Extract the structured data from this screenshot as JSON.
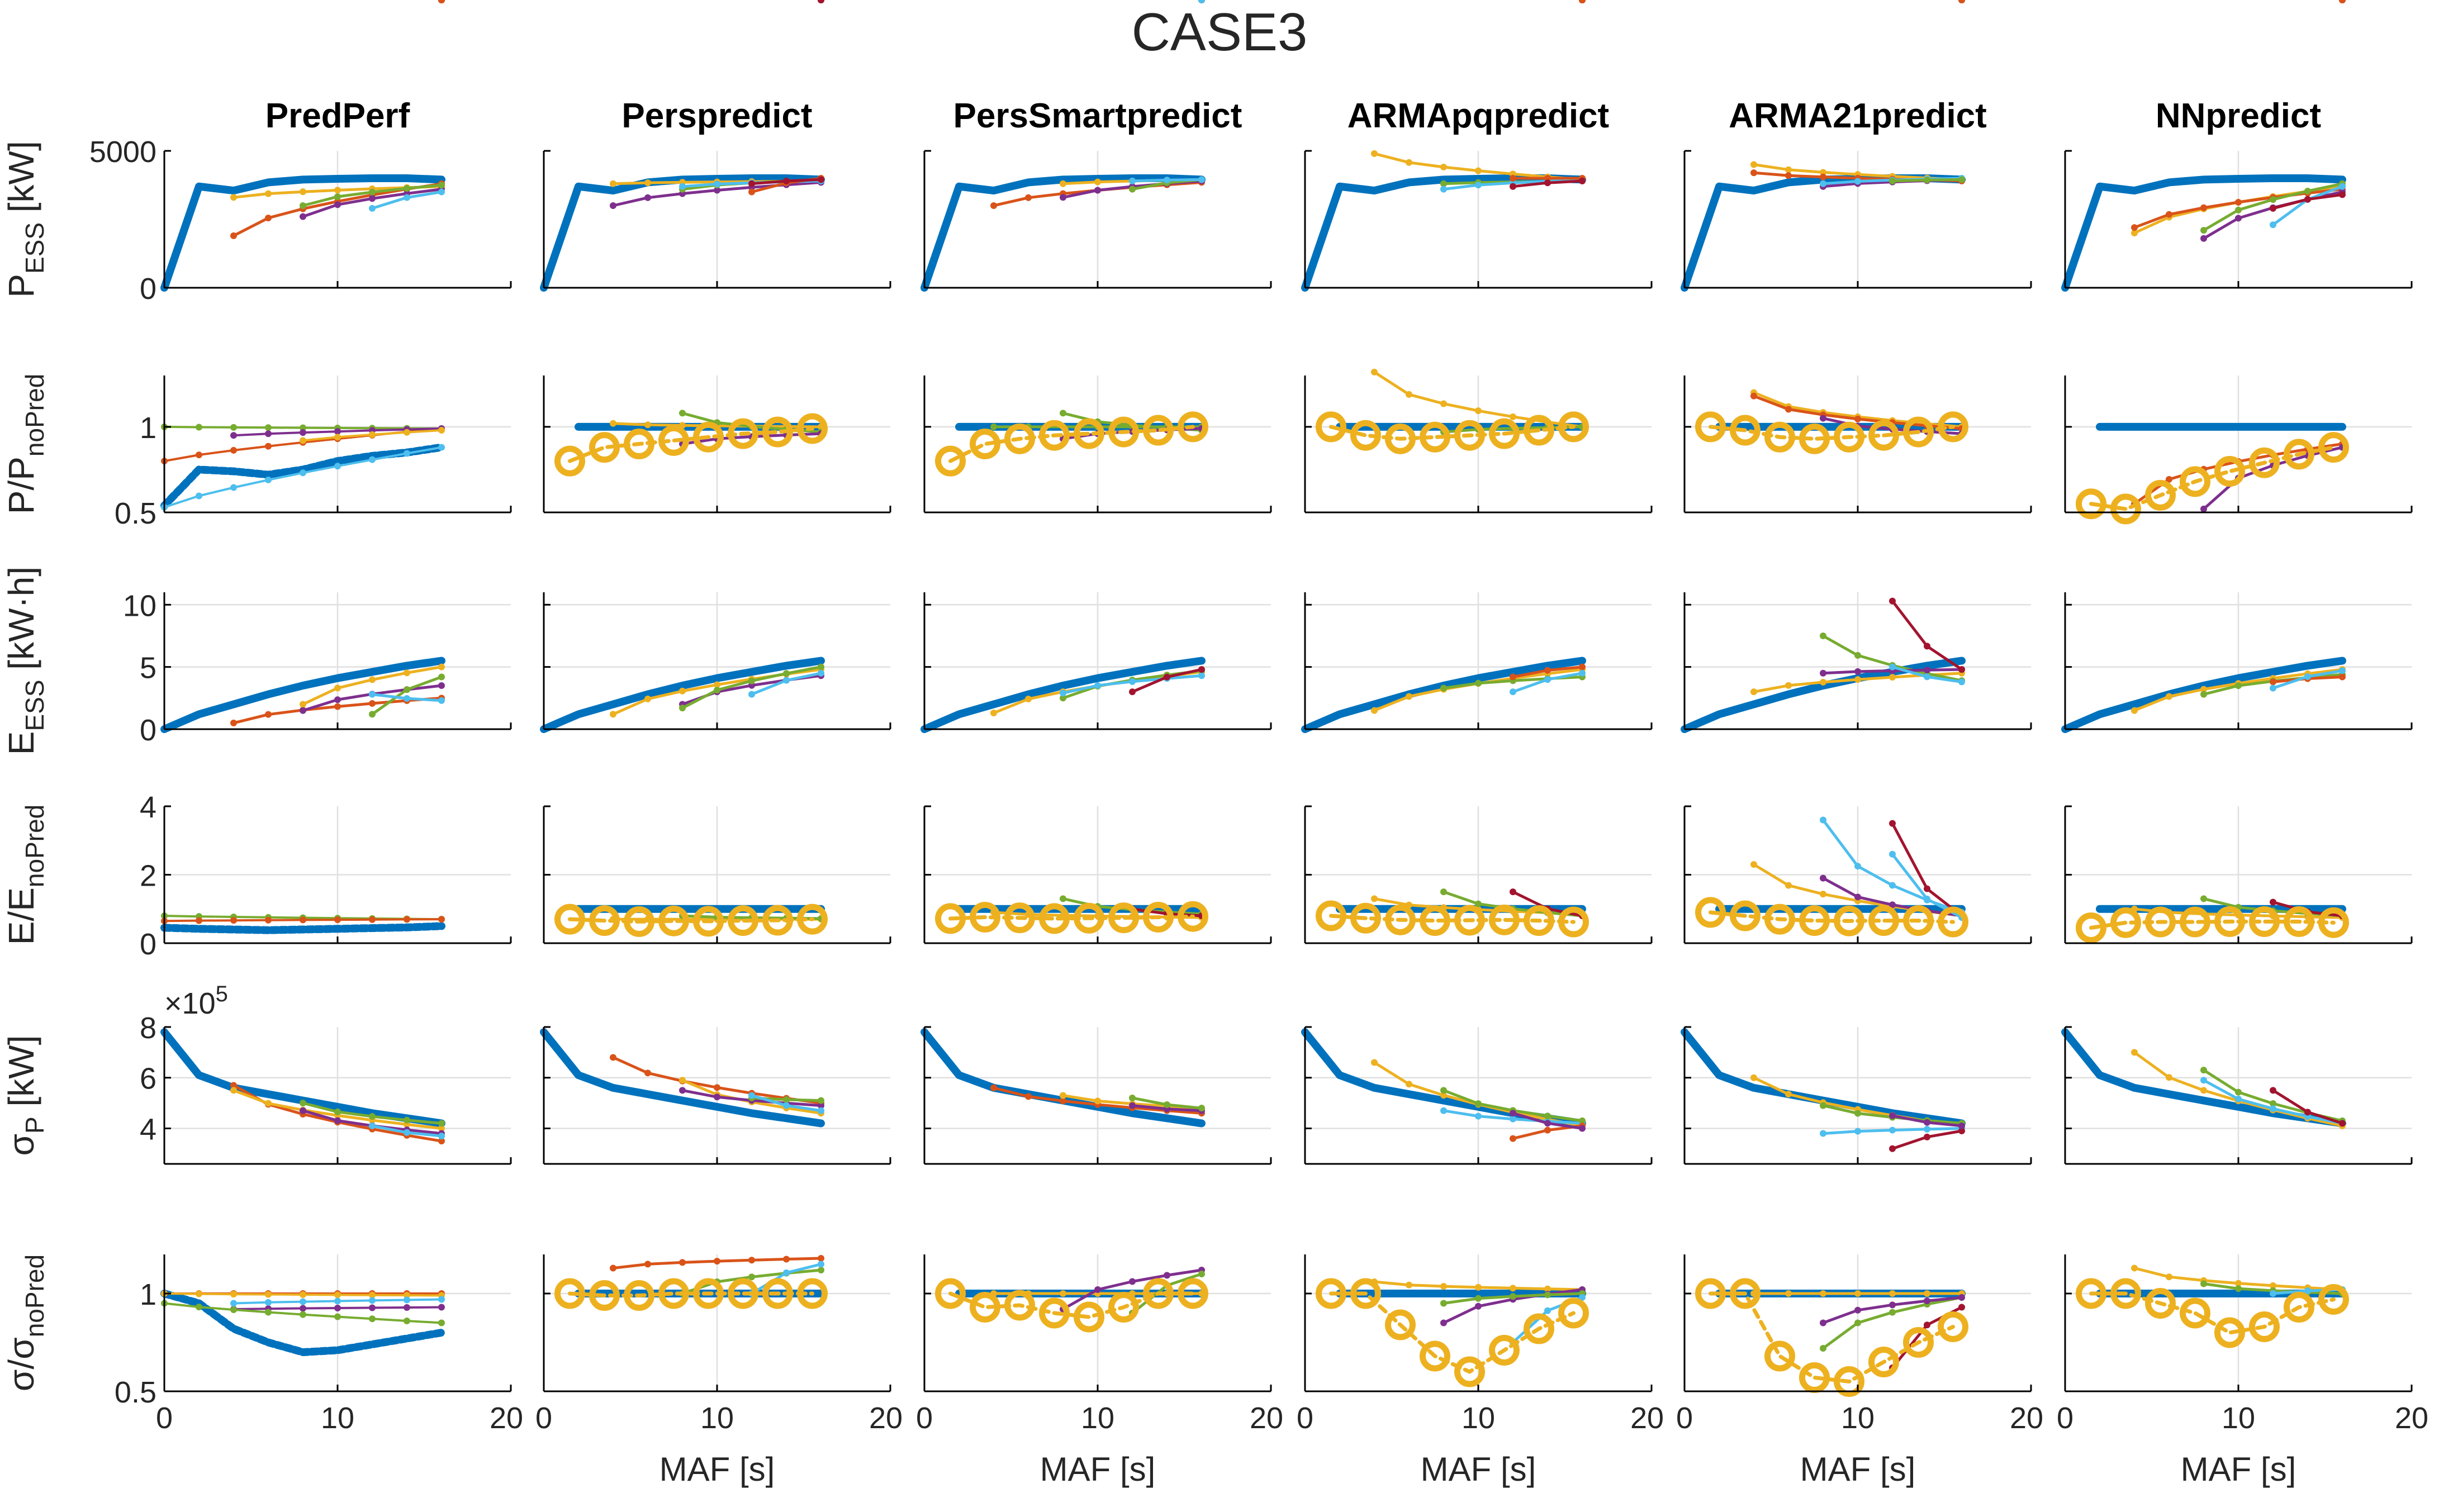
{
  "figure_title": "CASE3",
  "x_axis": {
    "label": "MAF [s]",
    "xlim": [
      0,
      20
    ],
    "ticks": [
      0,
      10,
      20
    ],
    "tick_labels_last_col": [
      "0",
      "10",
      "20"
    ],
    "tick_labels_other_cols": [
      "0",
      "10",
      "20"
    ]
  },
  "columns": [
    "PredPerf",
    "Perspredict",
    "PersSmartpredict",
    "ARMApqpredict",
    "ARMA21predict",
    "NNpredict"
  ],
  "rows": [
    {
      "key": "P_ESS",
      "ylabel_main": "P",
      "ylabel_sub": "ESS",
      "ylabel_tail": " [kW]",
      "ylim": [
        0,
        5000
      ],
      "ticks": [
        0,
        5000
      ],
      "tick_labels": [
        "0",
        "5000"
      ],
      "exponent_label": ""
    },
    {
      "key": "P_ratio",
      "ylabel_main": "P/P",
      "ylabel_sub": "noPred",
      "ylabel_tail": "",
      "ylim": [
        0.5,
        1.3
      ],
      "ticks": [
        0.5,
        1
      ],
      "tick_labels": [
        "0.5",
        "1"
      ],
      "exponent_label": ""
    },
    {
      "key": "E_ESS",
      "ylabel_main": "E",
      "ylabel_sub": "ESS",
      "ylabel_tail": " [kW·h]",
      "ylim": [
        0,
        11
      ],
      "ticks": [
        0,
        5,
        10
      ],
      "tick_labels": [
        "0",
        "5",
        "10"
      ],
      "exponent_label": ""
    },
    {
      "key": "E_ratio",
      "ylabel_main": "E/E",
      "ylabel_sub": "noPred",
      "ylabel_tail": "",
      "ylim": [
        0,
        4
      ],
      "ticks": [
        0,
        2,
        4
      ],
      "tick_labels": [
        "0",
        "2",
        "4"
      ],
      "exponent_label": ""
    },
    {
      "key": "sigma_P",
      "ylabel_main": "σ",
      "ylabel_sub": "P",
      "ylabel_tail": " [kW]",
      "ylim": [
        2.6,
        8
      ],
      "ticks": [
        4,
        6,
        8
      ],
      "tick_labels": [
        "4",
        "6",
        "8"
      ],
      "exponent_label": "×10",
      "exponent_power": "5"
    },
    {
      "key": "sigma_ratio",
      "ylabel_main": "σ/σ",
      "ylabel_sub": "noPred",
      "ylabel_tail": "",
      "ylim": [
        0.5,
        1.2
      ],
      "ticks": [
        0.5,
        1
      ],
      "tick_labels": [
        "0.5",
        "1"
      ],
      "exponent_label": ""
    }
  ],
  "colors": {
    "baseline": "#0072BD",
    "series": [
      "#0072BD",
      "#D95319",
      "#EDB120",
      "#7E2F8E",
      "#77AC30",
      "#4DBEEE",
      "#A2142F"
    ],
    "highlight_ring": "#EDB120"
  },
  "chart_data": {
    "type": "line",
    "title": "CASE3",
    "xlabel": "MAF [s]",
    "x": [
      0,
      2,
      4,
      6,
      8,
      10,
      12,
      14,
      16
    ],
    "baseline_P": [
      0,
      3700,
      3550,
      3850,
      3950,
      3980,
      4000,
      4000,
      3950
    ],
    "baseline_E": [
      0,
      1.2,
      2.0,
      2.8,
      3.5,
      4.1,
      4.6,
      5.1,
      5.5
    ],
    "baseline_sigma": [
      7.8,
      6.1,
      5.6,
      5.35,
      5.1,
      4.85,
      4.6,
      4.4,
      4.2
    ],
    "panels": [
      {
        "row": "P_ESS",
        "col": "PredPerf",
        "series": [
          {
            "start": 2,
            "end": [
              1900,
              3800
            ]
          },
          {
            "start": 2,
            "end": [
              3300,
              3700
            ]
          },
          {
            "start": 4,
            "end": [
              2600,
              3600
            ]
          },
          {
            "start": 4,
            "end": [
              3000,
              3750
            ]
          },
          {
            "start": 6,
            "end": [
              2900,
              3500
            ]
          },
          {
            "start": 8,
            "end": [
              3400,
              3900
            ]
          },
          {
            "start": 8,
            "end": [
              2800,
              3800
            ]
          }
        ]
      },
      {
        "row": "P_ESS",
        "col": "Perspredict",
        "series": [
          {
            "start": 2,
            "end": [
              3800,
              3900
            ]
          },
          {
            "start": 2,
            "end": [
              3000,
              3850
            ]
          },
          {
            "start": 4,
            "end": [
              3600,
              3950
            ]
          }
        ]
      },
      {
        "row": "P_ESS",
        "col": "PersSmartpredict",
        "series": [
          {
            "start": 2,
            "end": [
              3000,
              3850
            ]
          },
          {
            "start": 4,
            "end": [
              3600,
              3950
            ]
          }
        ]
      },
      {
        "row": "P_ESS",
        "col": "ARMApqpredict",
        "series": [
          {
            "start": 2,
            "end": [
              4900,
              3950
            ]
          },
          {
            "start": 4,
            "end": [
              3800,
              3900
            ]
          }
        ]
      },
      {
        "row": "P_ESS",
        "col": "ARMA21predict",
        "series": [
          {
            "start": 2,
            "end": [
              4500,
              3950
            ]
          },
          {
            "start": 2,
            "end": [
              4200,
              3900
            ]
          },
          {
            "start": 4,
            "end": [
              3700,
              3950
            ]
          }
        ]
      },
      {
        "row": "P_ESS",
        "col": "NNpredict",
        "series": [
          {
            "start": 2,
            "end": [
              2000,
              3700
            ]
          },
          {
            "start": 2,
            "end": [
              2200,
              3600
            ]
          },
          {
            "start": 4,
            "end": [
              1800,
              3500
            ]
          },
          {
            "start": 6,
            "end": [
              2300,
              3800
            ]
          }
        ]
      }
    ]
  }
}
